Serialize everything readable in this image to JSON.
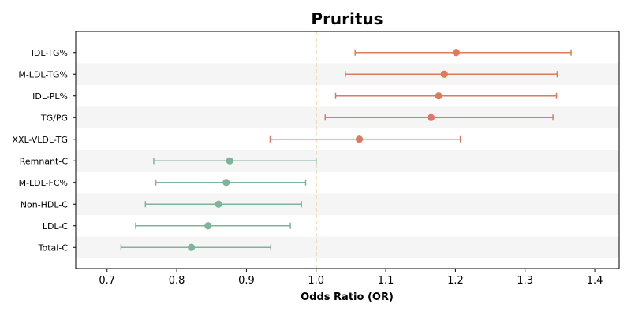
{
  "chart_data": {
    "type": "forest",
    "title": "Pruritus",
    "xlabel": "Odds Ratio (OR)",
    "xlim": [
      0.655,
      1.435
    ],
    "xticks": [
      0.7,
      0.8,
      0.9,
      1.0,
      1.1,
      1.2,
      1.3,
      1.4
    ],
    "reference_line": 1.0,
    "grid": false,
    "colors": {
      "risk": "#dd7a5f",
      "protective": "#7fb49a",
      "reference": "#f0c98a",
      "band": "#f5f5f5"
    },
    "rows": [
      {
        "label": "IDL-TG%",
        "or": 1.201,
        "lo": 1.056,
        "hi": 1.366
      },
      {
        "label": "M-LDL-TG%",
        "or": 1.184,
        "lo": 1.042,
        "hi": 1.346
      },
      {
        "label": "IDL-PL%",
        "or": 1.176,
        "lo": 1.028,
        "hi": 1.345
      },
      {
        "label": "TG/PG",
        "or": 1.165,
        "lo": 1.013,
        "hi": 1.34
      },
      {
        "label": "XXL-VLDL-TG",
        "or": 1.062,
        "lo": 0.934,
        "hi": 1.207
      },
      {
        "label": "Remnant-C",
        "or": 0.876,
        "lo": 0.767,
        "hi": 1.0
      },
      {
        "label": "M-LDL-FC%",
        "or": 0.871,
        "lo": 0.77,
        "hi": 0.985
      },
      {
        "label": "Non-HDL-C",
        "or": 0.86,
        "lo": 0.755,
        "hi": 0.979
      },
      {
        "label": "LDL-C",
        "or": 0.845,
        "lo": 0.741,
        "hi": 0.963
      },
      {
        "label": "Total-C",
        "or": 0.821,
        "lo": 0.72,
        "hi": 0.935
      }
    ]
  }
}
